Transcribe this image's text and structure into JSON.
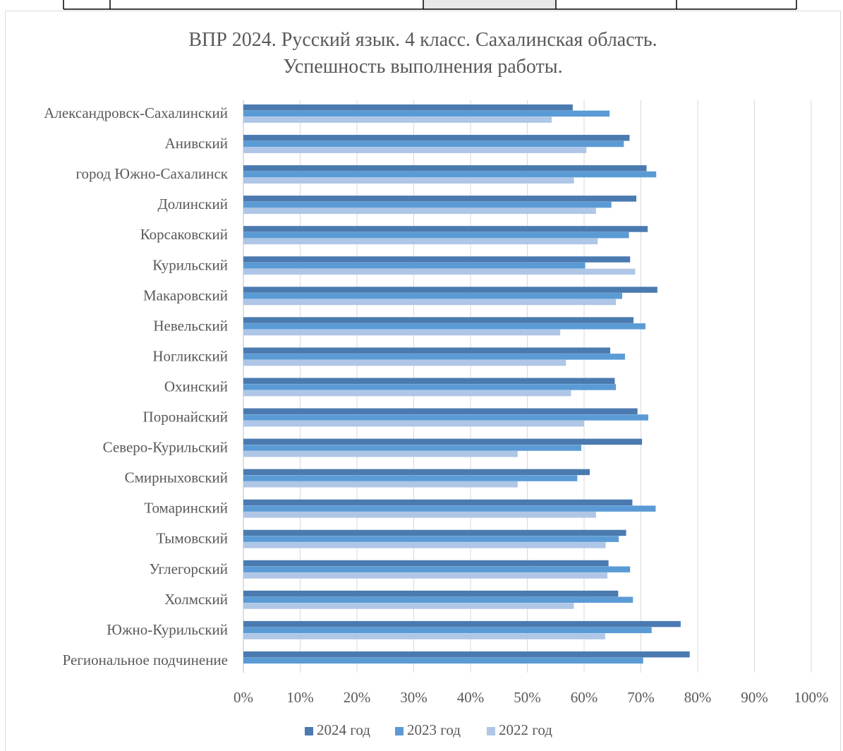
{
  "chart_data": {
    "type": "bar",
    "orientation": "horizontal",
    "title": "ВПР  2024. Русский язык. 4 класс. Сахалинская область.",
    "subtitle": "Успешность выполнения работы.",
    "xlim": [
      0,
      1
    ],
    "x_ticks": [
      "0%",
      "10%",
      "20%",
      "30%",
      "40%",
      "50%",
      "60%",
      "70%",
      "80%",
      "90%",
      "100%"
    ],
    "grid": "vertical",
    "legend_position": "bottom",
    "categories": [
      "Александровск-Сахалинский",
      "Анивский",
      "город Южно-Сахалинск",
      "Долинский",
      "Корсаковский",
      "Курильский",
      "Макаровский",
      "Невельский",
      "Ногликский",
      "Охинский",
      "Поронайский",
      "Северо-Курильский",
      "Смирныховский",
      "Томаринский",
      "Тымовский",
      "Углегорский",
      "Холмский",
      "Южно-Курильский",
      "Региональное подчинение"
    ],
    "series": [
      {
        "name": "2024 год",
        "color": "#4a7ab0",
        "values": [
          0.58,
          0.68,
          0.71,
          0.692,
          0.712,
          0.681,
          0.729,
          0.687,
          0.646,
          0.654,
          0.694,
          0.702,
          0.61,
          0.685,
          0.674,
          0.643,
          0.66,
          0.77,
          0.786
        ]
      },
      {
        "name": "2023 год",
        "color": "#5b9bd5",
        "values": [
          0.645,
          0.67,
          0.727,
          0.648,
          0.679,
          0.602,
          0.667,
          0.708,
          0.672,
          0.656,
          0.713,
          0.595,
          0.588,
          0.726,
          0.661,
          0.681,
          0.686,
          0.719,
          0.704
        ]
      },
      {
        "name": "2022 год",
        "color": "#afc6e6",
        "values": [
          0.543,
          0.604,
          0.582,
          0.621,
          0.624,
          0.69,
          0.656,
          0.558,
          0.568,
          0.577,
          0.6,
          0.483,
          0.483,
          0.621,
          0.638,
          0.641,
          0.582,
          0.637,
          null
        ]
      }
    ]
  }
}
